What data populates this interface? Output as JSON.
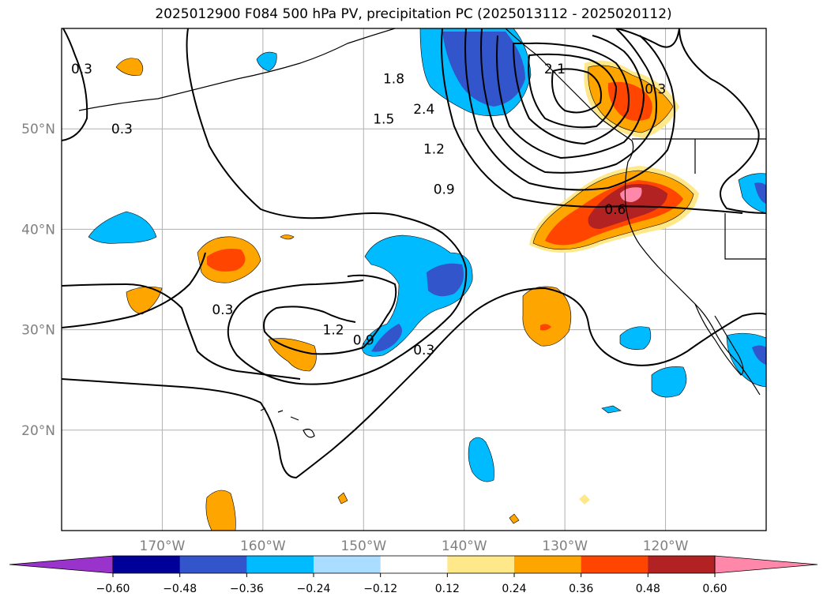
{
  "chart_data": {
    "type": "heatmap",
    "title": "2025012900 F084 500 hPa PV, precipitation PC (2025013112 - 2025020112)",
    "lon_range": [
      -180,
      -110
    ],
    "lat_range": [
      10,
      60
    ],
    "x_ticks": [
      {
        "lon": -170,
        "label": "170°W"
      },
      {
        "lon": -160,
        "label": "160°W"
      },
      {
        "lon": -150,
        "label": "150°W"
      },
      {
        "lon": -140,
        "label": "140°W"
      },
      {
        "lon": -130,
        "label": "130°W"
      },
      {
        "lon": -120,
        "label": "120°W"
      }
    ],
    "y_ticks": [
      {
        "lat": 20,
        "label": "20°N"
      },
      {
        "lat": 30,
        "label": "30°N"
      },
      {
        "lat": 40,
        "label": "40°N"
      },
      {
        "lat": 50,
        "label": "50°N"
      }
    ],
    "grid": true,
    "colorbar": {
      "orientation": "horizontal",
      "extend": "both",
      "levels": [
        -0.6,
        -0.48,
        -0.36,
        -0.24,
        -0.12,
        0.12,
        0.24,
        0.36,
        0.48,
        0.6
      ],
      "tick_labels": [
        "−0.60",
        "−0.48",
        "−0.36",
        "−0.24",
        "−0.12",
        "0.12",
        "0.24",
        "0.36",
        "0.48",
        "0.60"
      ],
      "colors": [
        "#9933cc",
        "#000099",
        "#3355cc",
        "#00bbff",
        "#aaddff",
        "#ffffff",
        "#ffe88a",
        "#ffa500",
        "#ff4500",
        "#b22222",
        "#ff88aa"
      ]
    },
    "pv_contour_labels": [
      {
        "text": "0.3",
        "lon": -178,
        "lat": 56
      },
      {
        "text": "0.3",
        "lon": -174,
        "lat": 50
      },
      {
        "text": "0.3",
        "lon": -164,
        "lat": 32
      },
      {
        "text": "0.3",
        "lon": -144,
        "lat": 28
      },
      {
        "text": "0.3",
        "lon": -121,
        "lat": 54
      },
      {
        "text": "0.6",
        "lon": -125,
        "lat": 42
      },
      {
        "text": "0.9",
        "lon": -142,
        "lat": 44
      },
      {
        "text": "1.2",
        "lon": -143,
        "lat": 48
      },
      {
        "text": "1.5",
        "lon": -148,
        "lat": 51
      },
      {
        "text": "1.8",
        "lon": -147,
        "lat": 55
      },
      {
        "text": "2.1",
        "lon": -131,
        "lat": 56
      },
      {
        "text": "2.4",
        "lon": -144,
        "lat": 52
      },
      {
        "text": "1.2",
        "lon": -153,
        "lat": 30
      },
      {
        "text": "0.9",
        "lon": -150,
        "lat": 29
      }
    ],
    "precip_pc_regions": [
      {
        "lon": -164,
        "lat": 57,
        "value": 0.18
      },
      {
        "lon": -158,
        "lat": 57,
        "value": -0.2
      },
      {
        "lon": -143,
        "lat": 56,
        "value": -0.4
      },
      {
        "lon": -127,
        "lat": 53,
        "value": 0.38
      },
      {
        "lon": -124,
        "lat": 43,
        "value": 0.62
      },
      {
        "lon": -128,
        "lat": 40,
        "value": 0.4
      },
      {
        "lon": -170,
        "lat": 40,
        "value": -0.26
      },
      {
        "lon": -166,
        "lat": 37,
        "value": 0.38
      },
      {
        "lon": -173,
        "lat": 33,
        "value": 0.2
      },
      {
        "lon": -146,
        "lat": 36,
        "value": -0.4
      },
      {
        "lon": -147,
        "lat": 30,
        "value": -0.38
      },
      {
        "lon": -153,
        "lat": 28,
        "value": 0.28
      },
      {
        "lon": -132,
        "lat": 31,
        "value": 0.3
      },
      {
        "lon": -122,
        "lat": 29,
        "value": -0.22
      },
      {
        "lon": -118,
        "lat": 25,
        "value": -0.25
      },
      {
        "lon": -113,
        "lat": 28,
        "value": -0.28
      },
      {
        "lon": -112,
        "lat": 43,
        "value": -0.3
      },
      {
        "lon": -141,
        "lat": 15,
        "value": -0.25
      },
      {
        "lon": -164,
        "lat": 12,
        "value": 0.26
      },
      {
        "lon": -126,
        "lat": 21,
        "value": -0.2
      }
    ]
  }
}
